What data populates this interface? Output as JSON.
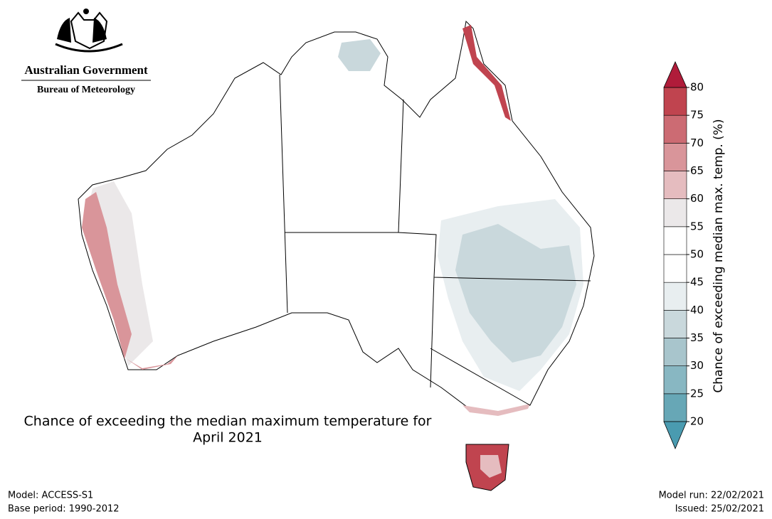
{
  "logo": {
    "line1": "Australian Government",
    "line2": "Bureau of Meteorology"
  },
  "title_lines": [
    "Chance of exceeding the median maximum temperature for",
    "April 2021"
  ],
  "colorbar": {
    "label": "Chance of exceeding median max. temp. (%)",
    "ticks": [
      20,
      25,
      30,
      35,
      40,
      45,
      50,
      55,
      60,
      65,
      70,
      75,
      80
    ],
    "colors": [
      "#67a7b6",
      "#88b7c2",
      "#a8c5cc",
      "#c9d8dc",
      "#e8eef0",
      "#ffffff",
      "#ffffff",
      "#ebe8e9",
      "#e5bcbf",
      "#d9959a",
      "#cc6b73",
      "#c0444f"
    ],
    "under_color": "#4a9bb0",
    "over_color": "#b01c3a"
  },
  "footer": {
    "model": "Model: ACCESS-S1",
    "base_period": "Base period: 1990-2012",
    "model_run": "Model run: 22/02/2021",
    "issued": "Issued: 25/02/2021"
  }
}
